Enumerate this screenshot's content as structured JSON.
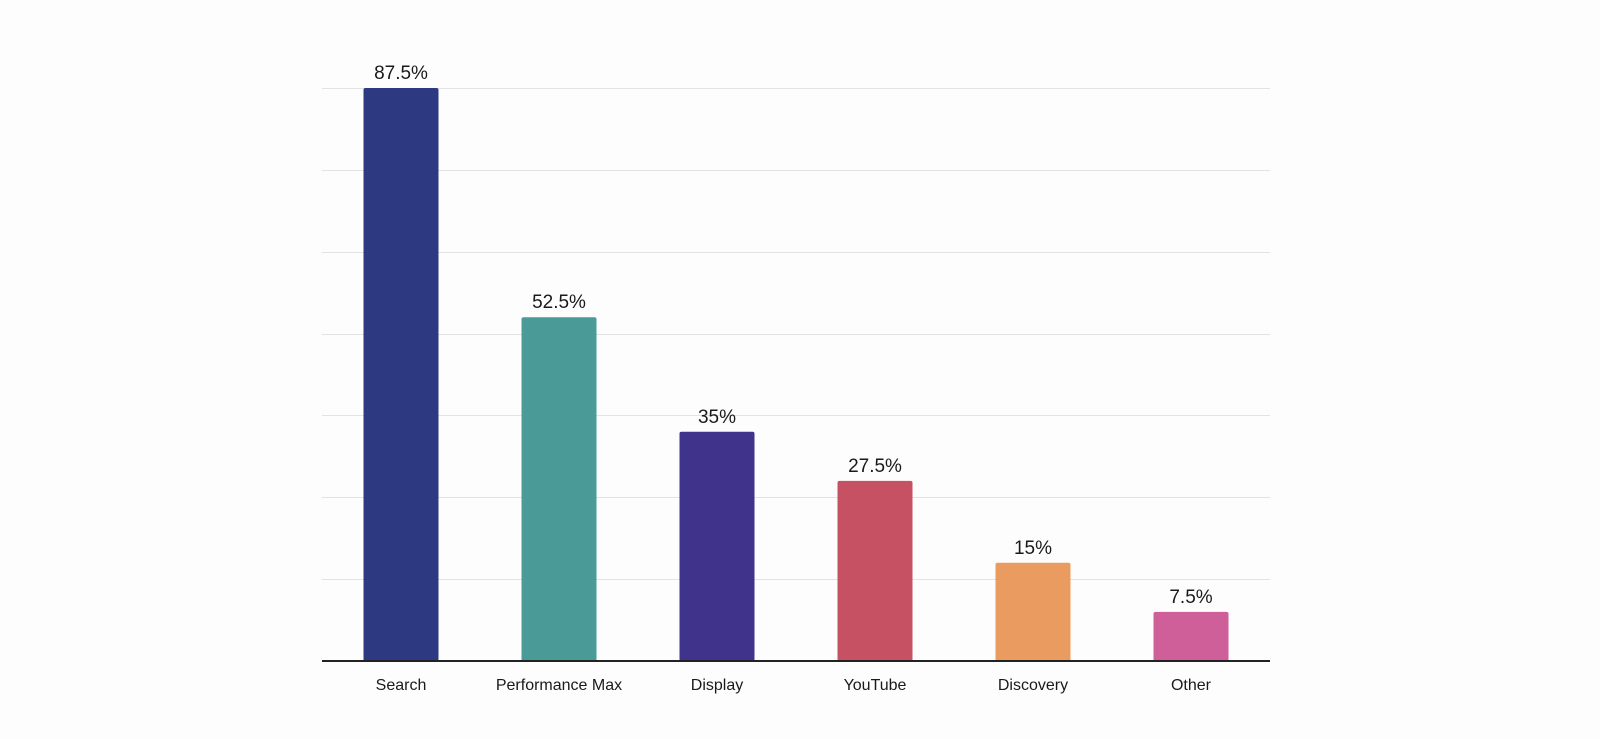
{
  "chart_data": {
    "type": "bar",
    "title": "",
    "xlabel": "",
    "ylabel": "",
    "categories": [
      "Search",
      "Performance Max",
      "Display",
      "YouTube",
      "Discovery",
      "Other"
    ],
    "values": [
      87.5,
      52.5,
      35,
      27.5,
      15,
      7.5
    ],
    "value_labels": [
      "87.5%",
      "52.5%",
      "35%",
      "27.5%",
      "15%",
      "7.5%"
    ],
    "colors": [
      "#2d3a82",
      "#4a9a97",
      "#3f338c",
      "#c55162",
      "#ea9b5f",
      "#cf5f98"
    ],
    "ylim": [
      0,
      87.5
    ],
    "y_ticks": [
      0,
      12.5,
      25,
      37.5,
      50,
      62.5,
      75,
      87.5
    ],
    "y_tick_labels_visible": false,
    "grid": true,
    "legend": "none"
  }
}
